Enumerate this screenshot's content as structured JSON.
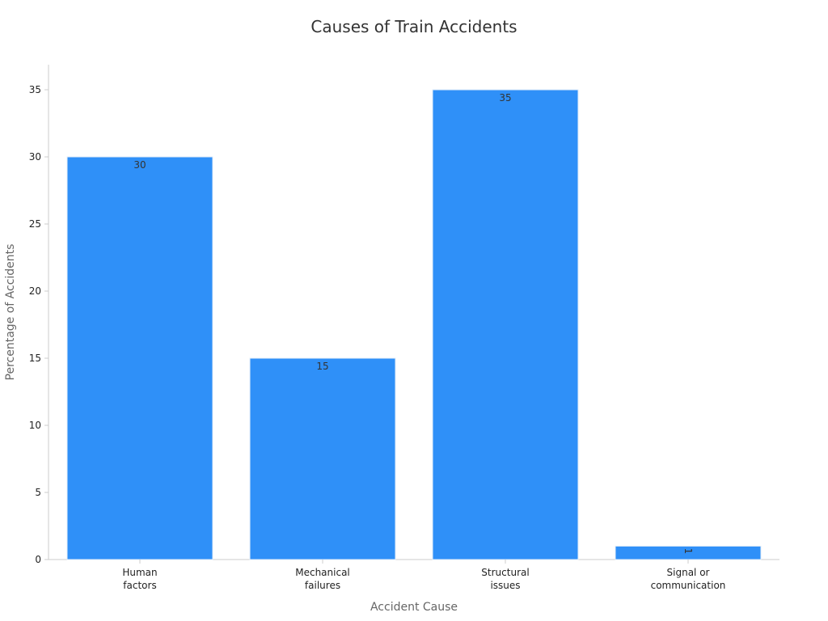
{
  "chart_data": {
    "type": "bar",
    "title": "Causes of Train Accidents",
    "xlabel": "Accident Cause",
    "ylabel": "Percentage of Accidents",
    "categories": [
      [
        "Human",
        "factors"
      ],
      [
        "Mechanical",
        "failures"
      ],
      [
        "Structural",
        "issues"
      ],
      [
        "Signal or",
        "communication"
      ]
    ],
    "values": [
      30,
      15,
      35,
      1
    ],
    "y_ticks": [
      0,
      5,
      10,
      15,
      20,
      25,
      30,
      35
    ],
    "ylim": [
      0,
      36.9
    ],
    "grid": false,
    "legend": "none",
    "bar_color": "#2F90F8",
    "bar_edge_color": "#E3EEF9"
  }
}
